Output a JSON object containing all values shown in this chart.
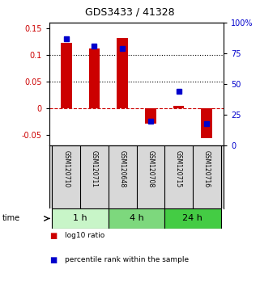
{
  "title": "GDS3433 / 41328",
  "samples": [
    "GSM120710",
    "GSM120711",
    "GSM120648",
    "GSM120708",
    "GSM120715",
    "GSM120716"
  ],
  "log10_ratio": [
    0.122,
    0.112,
    0.132,
    -0.03,
    0.004,
    -0.057
  ],
  "percentile_rank": [
    87,
    81,
    79,
    20,
    44,
    18
  ],
  "time_groups": [
    {
      "label": "1 h",
      "samples": [
        0,
        1
      ],
      "color": "#c8f5c8"
    },
    {
      "label": "4 h",
      "samples": [
        2,
        3
      ],
      "color": "#7dd87d"
    },
    {
      "label": "24 h",
      "samples": [
        4,
        5
      ],
      "color": "#44cc44"
    }
  ],
  "ylim_left": [
    -0.07,
    0.16
  ],
  "ylim_right": [
    0,
    100
  ],
  "yticks_left": [
    -0.05,
    0.0,
    0.05,
    0.1,
    0.15
  ],
  "yticks_right": [
    0,
    25,
    50,
    75,
    100
  ],
  "yticklabels_left": [
    "-0.05",
    "0",
    "0.05",
    "0.1",
    "0.15"
  ],
  "yticklabels_right": [
    "0",
    "25",
    "50",
    "75",
    "100%"
  ],
  "bar_color_red": "#cc0000",
  "bar_color_blue": "#0000cc",
  "zero_line_color": "#cc0000",
  "dotted_line_color": "#000000",
  "sample_bg_color": "#d8d8d8",
  "bar_width": 0.4
}
